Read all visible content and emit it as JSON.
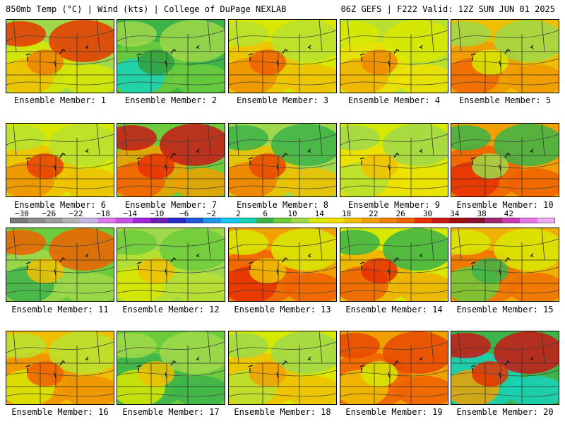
{
  "header": {
    "left": "850mb Temp (°C) | Wind (kts) | College of DuPage NEXLAB",
    "right": "06Z GEFS | F222 Valid: 12Z SUN JUN 01 2025"
  },
  "members": [
    {
      "label": "Ensemble Member: 1",
      "palette": [
        "#9fd84a",
        "#d8e800",
        "#f0c000",
        "#f08000",
        "#e83800"
      ]
    },
    {
      "label": "Ensemble Member: 2",
      "palette": [
        "#3cb44a",
        "#6ccc3c",
        "#18d2b8",
        "#30a040",
        "#9fd84a"
      ]
    },
    {
      "label": "Ensemble Member: 3",
      "palette": [
        "#d8e800",
        "#f0c000",
        "#f09000",
        "#f06000",
        "#b8e030"
      ]
    },
    {
      "label": "Ensemble Member: 4",
      "palette": [
        "#b8e030",
        "#f0e000",
        "#f0b000",
        "#f08800",
        "#d8e800"
      ]
    },
    {
      "label": "Ensemble Member: 5",
      "palette": [
        "#f0c000",
        "#f09800",
        "#f06800",
        "#d8e800",
        "#9fd84a"
      ]
    },
    {
      "label": "Ensemble Member: 6",
      "palette": [
        "#d8e800",
        "#f0c000",
        "#f09000",
        "#e84000",
        "#b8e030"
      ]
    },
    {
      "label": "Ensemble Member: 7",
      "palette": [
        "#6ccc3c",
        "#f0a000",
        "#f06000",
        "#e83000",
        "#c81818"
      ]
    },
    {
      "label": "Ensemble Member: 8",
      "palette": [
        "#9fd84a",
        "#f0c000",
        "#f08000",
        "#e84800",
        "#3cb44a"
      ]
    },
    {
      "label": "Ensemble Member: 9",
      "palette": [
        "#d8e800",
        "#f0e000",
        "#b8e030",
        "#f0c000",
        "#9fd84a"
      ]
    },
    {
      "label": "Ensemble Member: 10",
      "palette": [
        "#f0a000",
        "#f06000",
        "#e83000",
        "#9fd84a",
        "#3cb44a"
      ]
    },
    {
      "label": "Ensemble Member: 11",
      "palette": [
        "#6ccc3c",
        "#9fd84a",
        "#3cb44a",
        "#f0c000",
        "#f06000"
      ]
    },
    {
      "label": "Ensemble Member: 12",
      "palette": [
        "#9fd84a",
        "#b8e030",
        "#d8e800",
        "#f0c000",
        "#6ccc3c"
      ]
    },
    {
      "label": "Ensemble Member: 13",
      "palette": [
        "#f0a000",
        "#f06000",
        "#e83000",
        "#f0c000",
        "#d8e800"
      ]
    },
    {
      "label": "Ensemble Member: 14",
      "palette": [
        "#d8e800",
        "#f0b000",
        "#f06000",
        "#e83000",
        "#3cb44a"
      ]
    },
    {
      "label": "Ensemble Member: 15",
      "palette": [
        "#f0b000",
        "#f07000",
        "#6ccc3c",
        "#3cb44a",
        "#d8e800"
      ]
    },
    {
      "label": "Ensemble Member: 16",
      "palette": [
        "#f0c000",
        "#f09000",
        "#d8e800",
        "#f06000",
        "#b8e030"
      ]
    },
    {
      "label": "Ensemble Member: 17",
      "palette": [
        "#6ccc3c",
        "#3cb44a",
        "#d8e800",
        "#f0c000",
        "#9fd84a"
      ]
    },
    {
      "label": "Ensemble Member: 18",
      "palette": [
        "#d8e800",
        "#f0c000",
        "#b8e030",
        "#f0a000",
        "#9fd84a"
      ]
    },
    {
      "label": "Ensemble Member: 19",
      "palette": [
        "#f0a000",
        "#f06000",
        "#f0c000",
        "#d8e800",
        "#e84800"
      ]
    },
    {
      "label": "Ensemble Member: 20",
      "palette": [
        "#3cb44a",
        "#18d2b8",
        "#f0a000",
        "#e83000",
        "#c81818"
      ]
    }
  ],
  "colorbar": {
    "ticks": [
      "−30",
      "−26",
      "−22",
      "−18",
      "−14",
      "−10",
      "−6",
      "−2",
      "2",
      "6",
      "10",
      "14",
      "18",
      "22",
      "26",
      "30",
      "34",
      "38",
      "42"
    ],
    "colors": [
      "#7a7a7a",
      "#8c8c8c",
      "#9e9e9e",
      "#b4b4b4",
      "#c8b4e6",
      "#dc78f0",
      "#c850e6",
      "#a028dc",
      "#6e1eb4",
      "#2828c8",
      "#1e5adc",
      "#1e96f0",
      "#14c8f0",
      "#18d2b8",
      "#3cb44a",
      "#6ccc3c",
      "#9fd84a",
      "#d8e800",
      "#f0e000",
      "#f0c000",
      "#f0a000",
      "#f08000",
      "#f06000",
      "#e83000",
      "#c81818",
      "#a01010",
      "#8c1030",
      "#a0286e",
      "#c83cb4",
      "#e678e6",
      "#f0aaf0"
    ]
  }
}
